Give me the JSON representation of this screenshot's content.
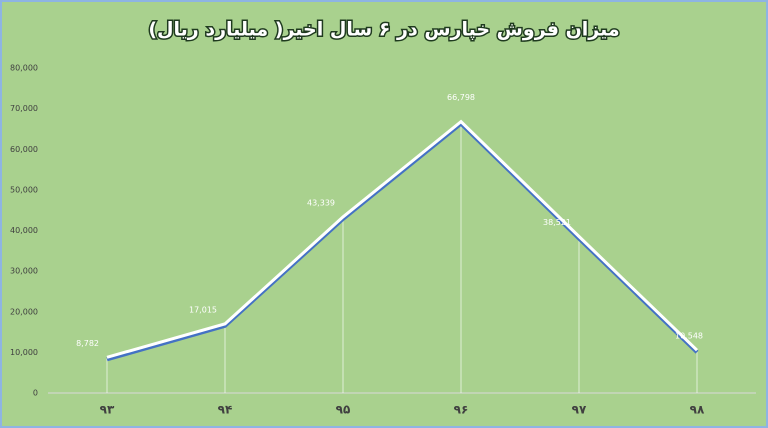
{
  "chart_data": {
    "type": "line",
    "title": "میزان فروش خپارس در ۶ سال اخیر( میلیارد ریال)",
    "categories": [
      "۹۳",
      "۹۴",
      "۹۵",
      "۹۶",
      "۹۷",
      "۹۸"
    ],
    "values": [
      8782,
      17015,
      43339,
      66798,
      38521,
      10548
    ],
    "value_labels": [
      "8,782",
      "17,015",
      "43,339",
      "66,798",
      "38,521",
      "10,548"
    ],
    "color": "#ffffff",
    "ylim": [
      0,
      80000
    ],
    "yticks": [
      0,
      {
        "value": 10000,
        "label": "10,000"
      },
      {
        "value": 20000,
        "label": "20,000"
      },
      {
        "value": 30000,
        "label": "30,000"
      },
      {
        "value": 40000,
        "label": "40,000"
      },
      {
        "value": 50000,
        "label": "50,000"
      },
      {
        "value": 60000,
        "label": "60,000"
      },
      {
        "value": 70000,
        "label": "70,000"
      },
      {
        "value": 80000,
        "label": "80,000"
      }
    ],
    "grid": false
  }
}
